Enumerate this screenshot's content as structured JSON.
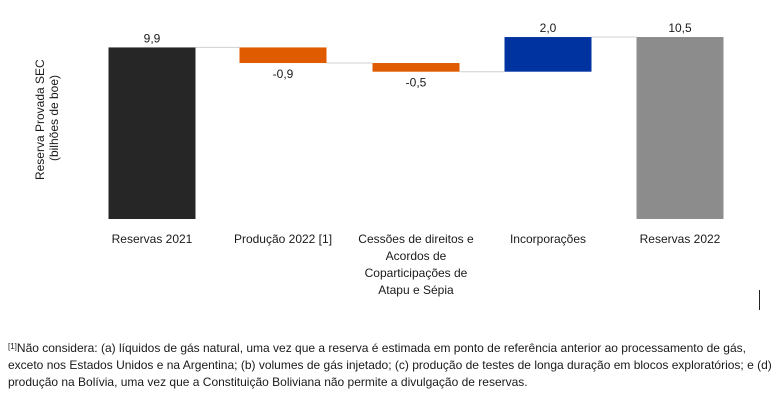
{
  "chart_data": {
    "type": "bar",
    "subtype": "waterfall",
    "ylabel_line1": "Reserva Provada SEC",
    "ylabel_line2": "(bilhões de boe)",
    "categories": [
      [
        "Reservas 2021"
      ],
      [
        "Produção 2022 [1]"
      ],
      [
        "Cessões de direitos e",
        "Acordos de",
        "Coparticipações de",
        "Atapu e Sépia"
      ],
      [
        "Incorporações"
      ],
      [
        "Reservas 2022"
      ]
    ],
    "values": [
      9.9,
      -0.9,
      -0.5,
      2.0,
      10.5
    ],
    "value_labels": [
      "9,9",
      "-0,9",
      "-0,5",
      "2,0",
      "10,5"
    ],
    "colors": [
      "#262626",
      "#e05a00",
      "#e05a00",
      "#0033a0",
      "#8c8c8c"
    ],
    "kinds": [
      "total",
      "delta",
      "delta",
      "delta",
      "total"
    ],
    "grid": false,
    "legend": "none"
  },
  "footnote": {
    "marker": "[1]",
    "text": "Não considera: (a) líquidos de gás natural, uma vez que a reserva é estimada em ponto de referência anterior ao processamento de gás, exceto nos Estados Unidos e na Argentina; (b) volumes de gás injetado; (c) produção de testes de longa duração em blocos exploratórios; e (d) produção na Bolívia, uma vez que a Constituição Boliviana não permite a divulgação de reservas."
  }
}
